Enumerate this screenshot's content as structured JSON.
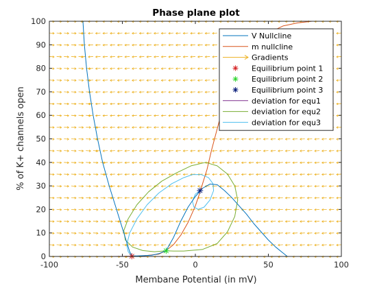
{
  "chart_data": {
    "type": "line",
    "title": "Phase plane plot",
    "xlabel": "Membane Potential (in mV)",
    "ylabel": "% of K+ channels open",
    "xlim": [
      -100,
      100
    ],
    "ylim": [
      0,
      100
    ],
    "x_ticks": [
      -100,
      -50,
      0,
      50,
      100
    ],
    "y_ticks": [
      0,
      10,
      20,
      30,
      40,
      50,
      60,
      70,
      80,
      90,
      100
    ],
    "x_tick_labels": [
      "-100",
      "-50",
      "0",
      "50",
      "100"
    ],
    "y_tick_labels": [
      "0",
      "10",
      "20",
      "30",
      "40",
      "50",
      "60",
      "70",
      "80",
      "90",
      "100"
    ],
    "grid": false,
    "legend_position": "top-right",
    "gradient_field": {
      "name": "Gradients",
      "color": "#EDB120",
      "x_start": -100,
      "x_step": 5,
      "x_count": 41,
      "y_start": 0,
      "y_step": 5,
      "y_count": 21
    },
    "series": [
      {
        "name": "V Nullcline",
        "color": "#0072BD",
        "points": [
          [
            -77,
            100
          ],
          [
            -76,
            90
          ],
          [
            -74.5,
            80
          ],
          [
            -72.5,
            70
          ],
          [
            -70,
            60
          ],
          [
            -67,
            50
          ],
          [
            -63.5,
            40
          ],
          [
            -59,
            30
          ],
          [
            -54,
            20
          ],
          [
            -50,
            12
          ],
          [
            -47,
            6
          ],
          [
            -45,
            2
          ],
          [
            -43.5,
            0.3
          ],
          [
            -40,
            0.2
          ],
          [
            -30,
            0.5
          ],
          [
            -25,
            1.2
          ],
          [
            -20,
            2.5
          ],
          [
            -15,
            8
          ],
          [
            -10,
            15
          ],
          [
            -5,
            21
          ],
          [
            0,
            25.5
          ],
          [
            5,
            29
          ],
          [
            10,
            30.8
          ],
          [
            15,
            30.5
          ],
          [
            20,
            28
          ],
          [
            25,
            25
          ],
          [
            30,
            21.5
          ],
          [
            35,
            18
          ],
          [
            40,
            14
          ],
          [
            45,
            10.5
          ],
          [
            50,
            7
          ],
          [
            55,
            4
          ],
          [
            60,
            1.5
          ],
          [
            63,
            0
          ]
        ]
      },
      {
        "name": "m nullcline",
        "color": "#D95319",
        "points": [
          [
            -100,
            0
          ],
          [
            -50,
            0
          ],
          [
            -44,
            0.1
          ],
          [
            -35,
            0.3
          ],
          [
            -25,
            1
          ],
          [
            -20,
            2.5
          ],
          [
            -15,
            5
          ],
          [
            -10,
            9
          ],
          [
            -5,
            14.5
          ],
          [
            0,
            21.5
          ],
          [
            3,
            27
          ],
          [
            5,
            31
          ],
          [
            8,
            37
          ],
          [
            11,
            45
          ],
          [
            14,
            52
          ],
          [
            17,
            59
          ],
          [
            20,
            65
          ],
          [
            25,
            73
          ],
          [
            30,
            80
          ],
          [
            35,
            85.5
          ],
          [
            40,
            89.5
          ],
          [
            45,
            92.5
          ],
          [
            50,
            95
          ],
          [
            60,
            98
          ],
          [
            70,
            99.3
          ],
          [
            80,
            100
          ]
        ]
      },
      {
        "name": "Equilibrium point 1",
        "color": "#D62728",
        "marker": "asterisk",
        "points": [
          [
            -43.5,
            0.1
          ]
        ]
      },
      {
        "name": "Equilibrium point 2",
        "color": "#2CD42C",
        "marker": "asterisk",
        "points": [
          [
            -20,
            2.4
          ]
        ]
      },
      {
        "name": "Equilibrium point 3",
        "color": "#0A1E7A",
        "marker": "asterisk",
        "points": [
          [
            3.2,
            28
          ]
        ]
      },
      {
        "name": "deviation for equ1",
        "color": "#7E2F8E",
        "points": [
          [
            -100,
            0
          ],
          [
            -60,
            0
          ],
          [
            -43.5,
            0.1
          ]
        ]
      },
      {
        "name": "deviation for equ2",
        "color": "#77AC30",
        "points": [
          [
            -20,
            2.4
          ],
          [
            -28,
            2
          ],
          [
            -36,
            2.5
          ],
          [
            -43,
            4
          ],
          [
            -48,
            7
          ],
          [
            -49,
            11
          ],
          [
            -46,
            16
          ],
          [
            -40,
            22
          ],
          [
            -32,
            27.5
          ],
          [
            -23,
            32
          ],
          [
            -13,
            35.5
          ],
          [
            -3,
            38.5
          ],
          [
            7,
            40
          ],
          [
            15,
            38.5
          ],
          [
            22,
            35
          ],
          [
            27,
            30
          ],
          [
            29,
            24
          ],
          [
            27,
            17
          ],
          [
            22,
            10.5
          ],
          [
            15,
            5.5
          ],
          [
            5,
            3
          ],
          [
            -8,
            2.3
          ],
          [
            -15,
            2.3
          ],
          [
            -20,
            2.4
          ]
        ]
      },
      {
        "name": "deviation for equ3",
        "color": "#4DBEEE",
        "points": [
          [
            -44,
            0.2
          ],
          [
            -46,
            2
          ],
          [
            -47,
            5
          ],
          [
            -45,
            10
          ],
          [
            -40,
            16
          ],
          [
            -33,
            22
          ],
          [
            -25,
            27
          ],
          [
            -16,
            31
          ],
          [
            -8,
            33.5
          ],
          [
            -2,
            34.8
          ],
          [
            4,
            34.8
          ],
          [
            9,
            33.5
          ],
          [
            12,
            31
          ],
          [
            12.5,
            28
          ],
          [
            10,
            24
          ],
          [
            6,
            21
          ],
          [
            2,
            20
          ],
          [
            -1,
            21
          ],
          [
            -2,
            23.5
          ],
          [
            0,
            26.5
          ],
          [
            3.2,
            28
          ]
        ]
      }
    ]
  }
}
